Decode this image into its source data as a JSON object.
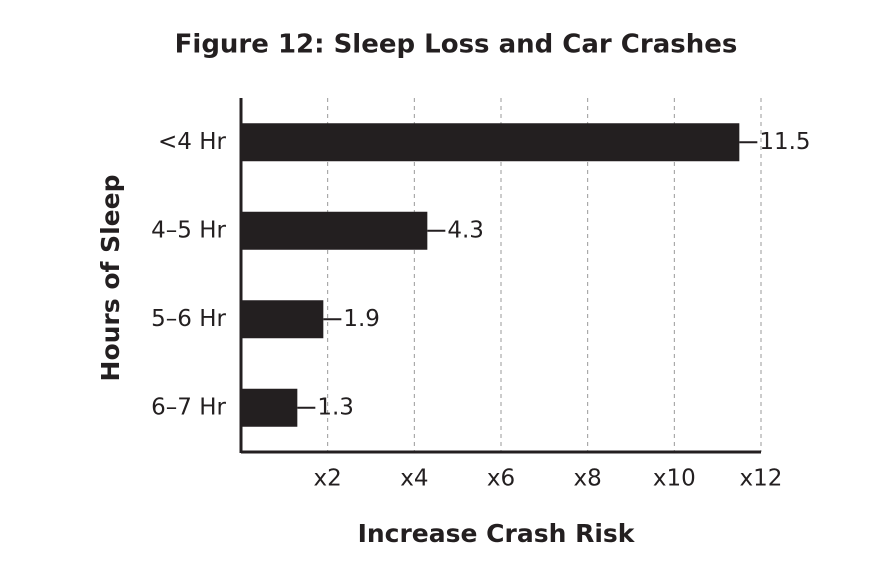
{
  "chart_data": {
    "type": "bar",
    "orientation": "horizontal",
    "title": "Figure 12: Sleep Loss and Car Crashes",
    "x_label": "Increase Crash Risk",
    "y_label": "Hours of Sleep",
    "categories": [
      "<4 Hr",
      "4–5 Hr",
      "5–6 Hr",
      "6–7 Hr"
    ],
    "values": [
      11.5,
      4.3,
      1.9,
      1.3
    ],
    "color": "#231f20",
    "xlim": [
      0,
      12
    ],
    "xticks": [
      {
        "value": 2,
        "label": "x2"
      },
      {
        "value": 4,
        "label": "x4"
      },
      {
        "value": 6,
        "label": "x6"
      },
      {
        "value": 8,
        "label": "x8"
      },
      {
        "value": 10,
        "label": "x10"
      },
      {
        "value": 12,
        "label": "x12"
      }
    ],
    "grid": true
  }
}
